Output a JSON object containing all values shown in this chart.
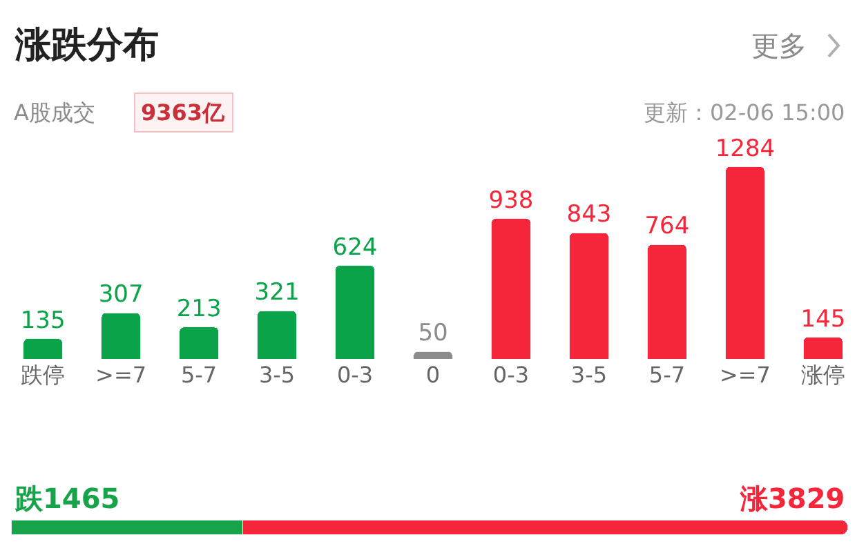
{
  "chart_data": [
    {
      "type": "bar",
      "title": "涨跌分布",
      "annotations": [
        "A股成交",
        "9363亿",
        "更新：02-06 15:00",
        "更多"
      ],
      "categories": [
        "跌停",
        ">=7",
        "5-7",
        "3-5",
        "0-3",
        "0",
        "0-3",
        "3-5",
        "5-7",
        ">=7",
        "涨停"
      ],
      "values": [
        135,
        307,
        213,
        321,
        624,
        50,
        938,
        843,
        764,
        1284,
        145
      ],
      "colors": [
        "#0aa34a",
        "#0aa34a",
        "#0aa34a",
        "#0aa34a",
        "#0aa34a",
        "#8c8c8c",
        "#f5263a",
        "#f5263a",
        "#f5263a",
        "#f5263a",
        "#f5263a"
      ],
      "data_labels": true
    },
    {
      "type": "bar",
      "orientation": "horizontal",
      "stacked": true,
      "categories": [
        null
      ],
      "series": [
        {
          "color": "#16a34a",
          "values": [
            1465
          ],
          "value_labels": [
            "跌1465"
          ]
        },
        {
          "color": "#f5263a",
          "values": [
            3829
          ],
          "value_labels": [
            "涨3829"
          ]
        }
      ]
    }
  ]
}
